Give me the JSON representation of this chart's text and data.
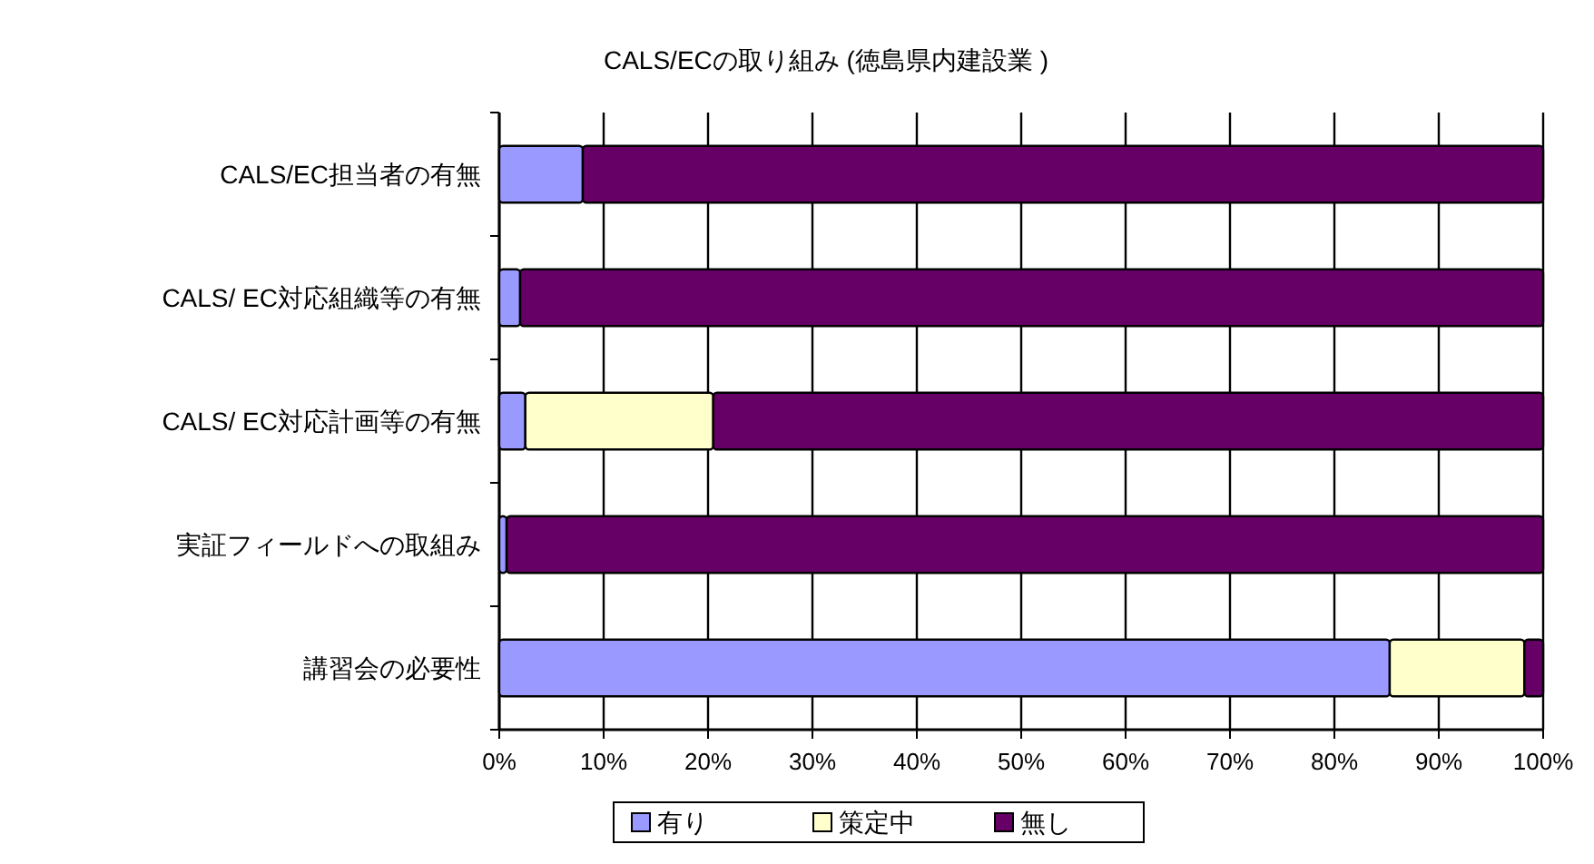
{
  "chart_data": {
    "type": "bar",
    "orientation": "horizontal",
    "stacked": true,
    "title": "CALS/ECの取り組み (徳島県内建設業 )",
    "categories": [
      "CALS/EC担当者の有無",
      "CALS/ EC対応組織等の有無",
      "CALS/ EC対応計画等の有無",
      "実証フィールドへの取組み",
      "講習会の必要性"
    ],
    "series": [
      {
        "name": "有り",
        "color": "#9999ff",
        "values": [
          8,
          2,
          2.5,
          0.7,
          85.3
        ]
      },
      {
        "name": "策定中",
        "color": "#ffffcc",
        "values": [
          0,
          0,
          18,
          0,
          12.9
        ]
      },
      {
        "name": "無し",
        "color": "#660066",
        "values": [
          92,
          98,
          79.5,
          99.3,
          1.8
        ]
      }
    ],
    "xlim": [
      0,
      100
    ],
    "xticks": [
      {
        "value": 0,
        "label": "0%"
      },
      {
        "value": 10,
        "label": "10%"
      },
      {
        "value": 20,
        "label": "20%"
      },
      {
        "value": 30,
        "label": "30%"
      },
      {
        "value": 40,
        "label": "40%"
      },
      {
        "value": 50,
        "label": "50%"
      },
      {
        "value": 60,
        "label": "60%"
      },
      {
        "value": 70,
        "label": "70%"
      },
      {
        "value": 80,
        "label": "80%"
      },
      {
        "value": 90,
        "label": "90%"
      },
      {
        "value": 100,
        "label": "100%"
      }
    ],
    "grid": "x",
    "legend": "bottom"
  }
}
